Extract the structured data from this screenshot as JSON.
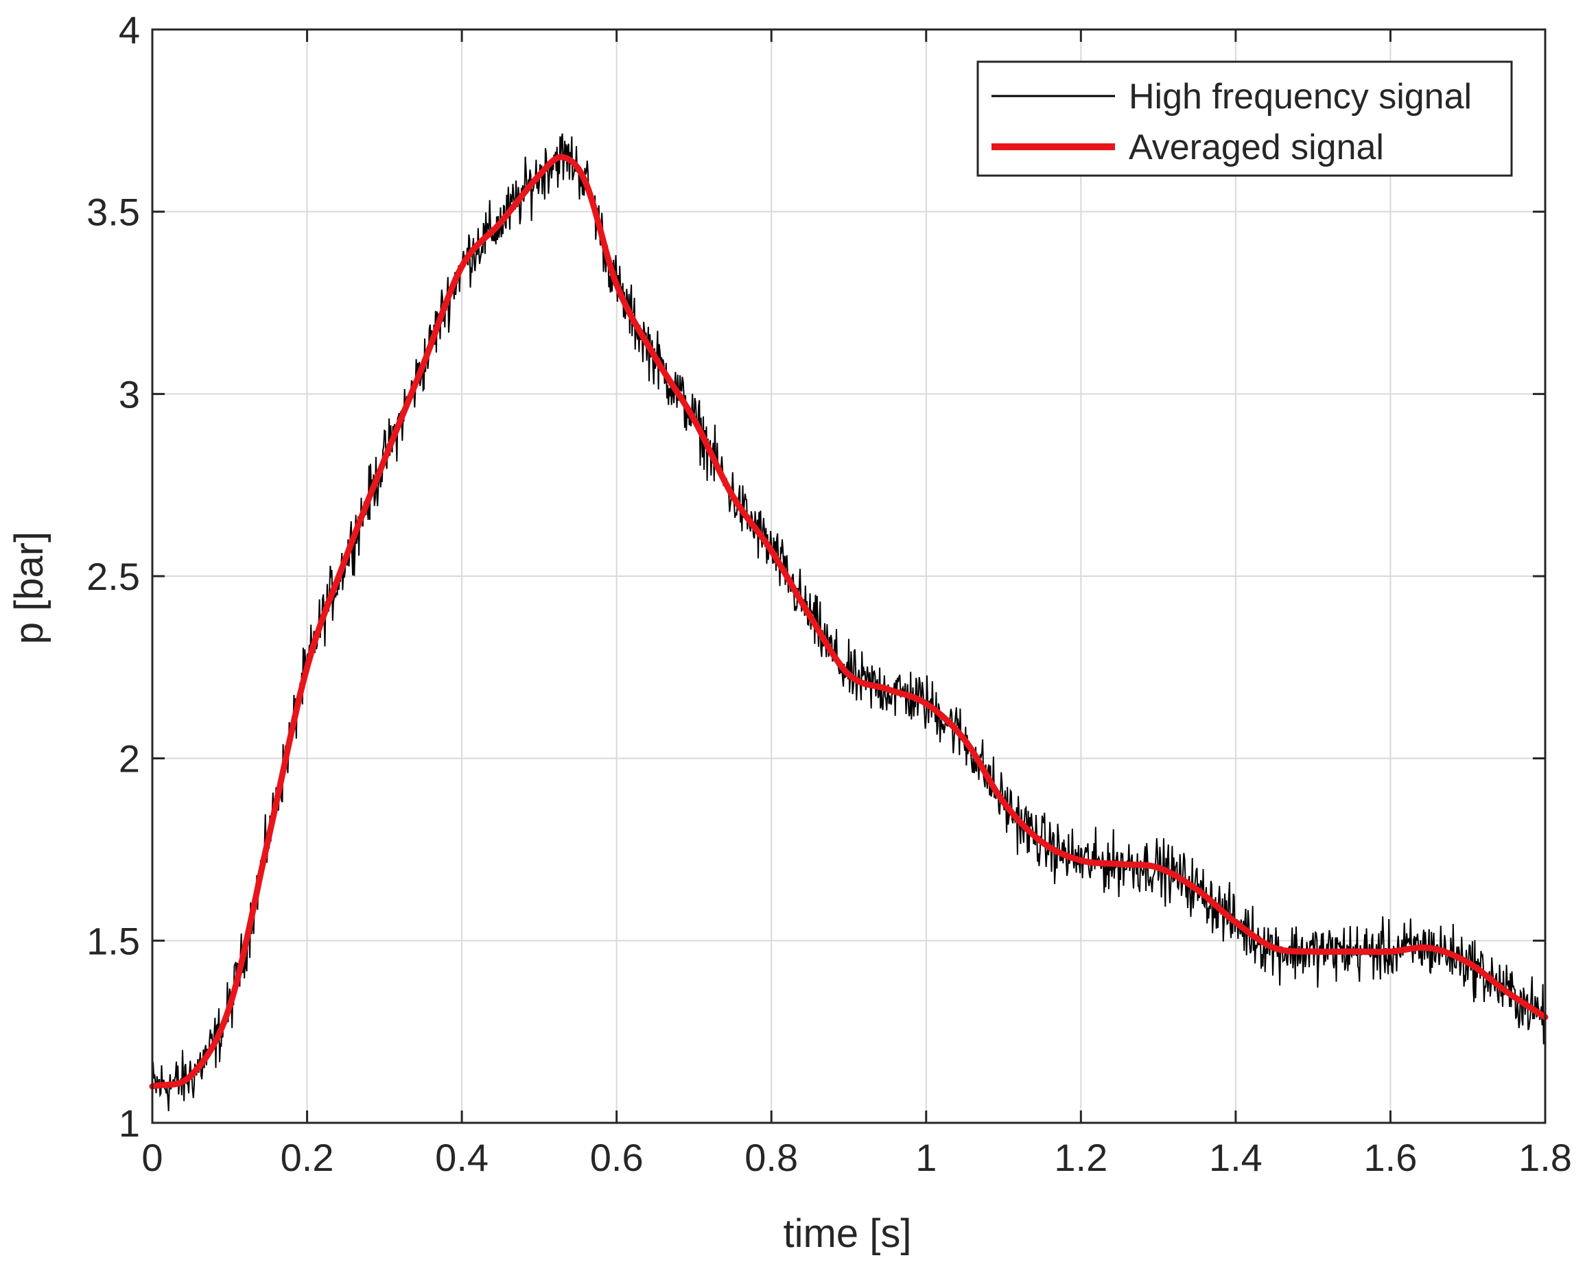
{
  "chart_data": {
    "type": "line",
    "title": "",
    "xlabel": "time [s]",
    "ylabel": "p [bar]",
    "xlim": [
      0,
      1.8
    ],
    "ylim": [
      1,
      4
    ],
    "x_ticks": [
      0,
      0.2,
      0.4,
      0.6,
      0.8,
      1,
      1.2,
      1.4,
      1.6,
      1.8
    ],
    "x_tick_labels": [
      "0",
      "0.2",
      "0.4",
      "0.6",
      "0.8",
      "1",
      "1.2",
      "1.4",
      "1.6",
      "1.8"
    ],
    "y_ticks": [
      1,
      1.5,
      2,
      2.5,
      3,
      3.5,
      4
    ],
    "y_tick_labels": [
      "1",
      "1.5",
      "2",
      "2.5",
      "3",
      "3.5",
      "4"
    ],
    "grid": true,
    "legend_position": "top-right",
    "series": [
      {
        "name": "High frequency signal",
        "color": "#000000",
        "style": "thin noisy line",
        "noise_amplitude": 0.06,
        "x": [
          0,
          0.05,
          0.1,
          0.15,
          0.2,
          0.25,
          0.3,
          0.35,
          0.4,
          0.45,
          0.5,
          0.53,
          0.56,
          0.6,
          0.65,
          0.7,
          0.75,
          0.8,
          0.85,
          0.9,
          0.95,
          1.0,
          1.05,
          1.1,
          1.15,
          1.2,
          1.25,
          1.3,
          1.35,
          1.4,
          1.45,
          1.5,
          1.55,
          1.6,
          1.65,
          1.7,
          1.75,
          1.8
        ],
        "y": [
          1.1,
          1.13,
          1.32,
          1.78,
          2.25,
          2.55,
          2.82,
          3.08,
          3.35,
          3.47,
          3.6,
          3.65,
          3.58,
          3.3,
          3.1,
          2.93,
          2.72,
          2.57,
          2.39,
          2.23,
          2.19,
          2.15,
          2.05,
          1.88,
          1.77,
          1.72,
          1.71,
          1.7,
          1.64,
          1.55,
          1.48,
          1.47,
          1.47,
          1.47,
          1.48,
          1.44,
          1.36,
          1.29
        ]
      },
      {
        "name": "Averaged signal",
        "color": "#e8151b",
        "style": "thick smooth line",
        "x": [
          0,
          0.05,
          0.1,
          0.15,
          0.2,
          0.25,
          0.3,
          0.35,
          0.4,
          0.45,
          0.5,
          0.53,
          0.56,
          0.6,
          0.65,
          0.7,
          0.75,
          0.8,
          0.85,
          0.9,
          0.95,
          1.0,
          1.05,
          1.1,
          1.15,
          1.2,
          1.25,
          1.3,
          1.35,
          1.4,
          1.45,
          1.5,
          1.55,
          1.6,
          1.65,
          1.7,
          1.75,
          1.8
        ],
        "y": [
          1.1,
          1.13,
          1.32,
          1.78,
          2.25,
          2.55,
          2.82,
          3.08,
          3.35,
          3.47,
          3.6,
          3.65,
          3.58,
          3.3,
          3.1,
          2.93,
          2.72,
          2.57,
          2.39,
          2.23,
          2.19,
          2.15,
          2.05,
          1.88,
          1.77,
          1.72,
          1.71,
          1.7,
          1.64,
          1.55,
          1.48,
          1.47,
          1.47,
          1.47,
          1.48,
          1.44,
          1.36,
          1.29
        ]
      }
    ]
  }
}
